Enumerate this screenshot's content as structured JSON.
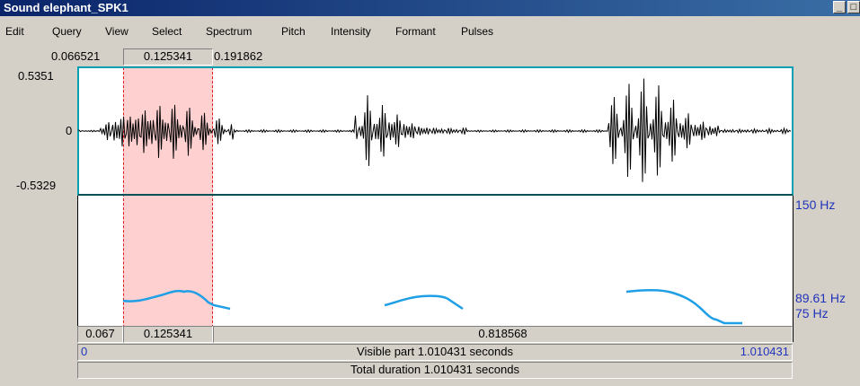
{
  "window": {
    "title": "Sound elephant_SPK1",
    "min_label": "_",
    "restore_label": "□"
  },
  "menu": [
    "Edit",
    "Query",
    "View",
    "Select",
    "Spectrum",
    "Pitch",
    "Intensity",
    "Formant",
    "Pulses"
  ],
  "selection": {
    "start": "0.066521",
    "duration": "0.125341",
    "end": "0.191862"
  },
  "amplitude": {
    "max": "0.5351",
    "zero": "0",
    "min": "-0.5329"
  },
  "pitch_labels": {
    "top": "150 Hz",
    "cursor": "89.61 Hz",
    "bottom": "75 Hz"
  },
  "bottom_ruler": {
    "left_seg": "0.067",
    "sel_seg": "0.125341",
    "right_seg": "0.818568",
    "visible_start": "0",
    "visible_label": "Visible part 1.010431 seconds",
    "visible_end": "1.010431",
    "total_label": "Total duration 1.010431 seconds"
  },
  "colors": {
    "selection": "#ffd0d0",
    "cursor": "#e0191f",
    "pitch": "#1f9fe6",
    "frame": "#00a0b0"
  }
}
